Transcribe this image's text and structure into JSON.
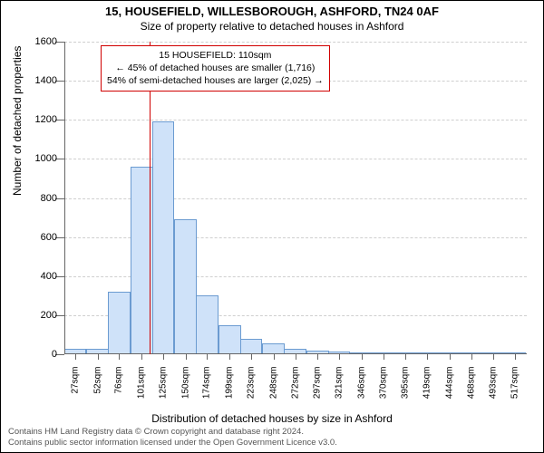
{
  "title_line1": "15, HOUSEFIELD, WILLESBOROUGH, ASHFORD, TN24 0AF",
  "title_line2": "Size of property relative to detached houses in Ashford",
  "ylabel": "Number of detached properties",
  "xlabel": "Distribution of detached houses by size in Ashford",
  "footer_line1": "Contains HM Land Registry data © Crown copyright and database right 2024.",
  "footer_line2": "Contains public sector information licensed under the Open Government Licence v3.0.",
  "annotation": {
    "line1": "15 HOUSEFIELD: 110sqm",
    "line2": "← 45% of detached houses are smaller (1,716)",
    "line3": "54% of semi-detached houses are larger (2,025) →"
  },
  "chart": {
    "type": "histogram",
    "background_color": "#ffffff",
    "grid_color": "#cfcfcf",
    "axis_color": "#666666",
    "bar_fill": "#cfe2f9",
    "bar_border": "#6b9bd1",
    "marker_color": "#d00000",
    "marker_x_value": 110,
    "title_fontsize": 13,
    "subtitle_fontsize": 12,
    "label_fontsize": 12,
    "tick_fontsize": 11,
    "xtick_fontsize": 10,
    "xtick_rotation": -90,
    "ylim": [
      0,
      1600
    ],
    "ytick_step": 200,
    "yticks": [
      0,
      200,
      400,
      600,
      800,
      1000,
      1200,
      1400,
      1600
    ],
    "x_range": [
      15,
      530
    ],
    "bin_width_sqm": 25,
    "x_tick_values": [
      27,
      52,
      76,
      101,
      125,
      150,
      174,
      199,
      223,
      248,
      272,
      297,
      321,
      346,
      370,
      395,
      419,
      444,
      468,
      493,
      517
    ],
    "x_tick_labels": [
      "27sqm",
      "52sqm",
      "76sqm",
      "101sqm",
      "125sqm",
      "150sqm",
      "174sqm",
      "199sqm",
      "223sqm",
      "248sqm",
      "272sqm",
      "297sqm",
      "321sqm",
      "346sqm",
      "370sqm",
      "395sqm",
      "419sqm",
      "444sqm",
      "468sqm",
      "493sqm",
      "517sqm"
    ],
    "bar_heights": [
      30,
      30,
      320,
      960,
      1190,
      690,
      300,
      150,
      80,
      55,
      30,
      20,
      15,
      10,
      10,
      10,
      5,
      5,
      3,
      3,
      2
    ]
  }
}
